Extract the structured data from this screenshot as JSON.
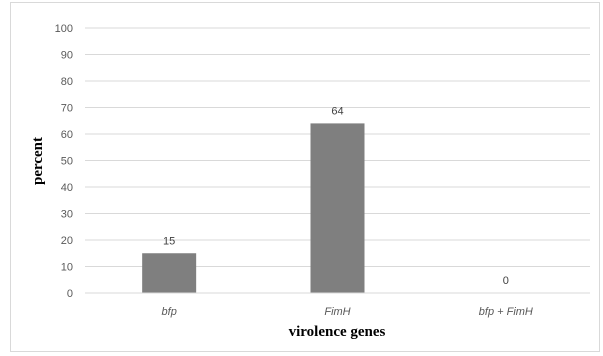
{
  "chart_data": {
    "type": "bar",
    "categories": [
      "bfp",
      "FimH",
      "bfp + FimH"
    ],
    "values": [
      15,
      64,
      0
    ],
    "data_labels": [
      "15",
      "64",
      "0"
    ],
    "title": "",
    "xlabel": "virolence genes",
    "ylabel": "percent",
    "ylim": [
      0,
      100
    ],
    "yticks": [
      0,
      10,
      20,
      30,
      40,
      50,
      60,
      70,
      80,
      90,
      100
    ],
    "grid": true,
    "legend": "none",
    "colors": {
      "bar": "#7f7f7f",
      "grid": "#d9d9d9",
      "axis": "#d9d9d9",
      "text": "#595959"
    }
  }
}
